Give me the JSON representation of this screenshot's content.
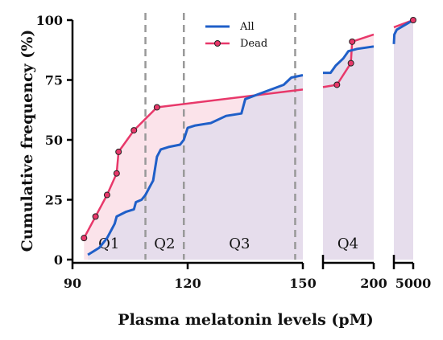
{
  "chart_data": {
    "type": "line",
    "xlabel": "Plasma melatonin levels (pM)",
    "ylabel": "Cumulative frequency (%)",
    "ylim": [
      0,
      100
    ],
    "y_ticks": [
      "0",
      "25",
      "50",
      "75",
      "100"
    ],
    "x_ticks": [
      "90",
      "120",
      "150",
      "200",
      "5000"
    ],
    "x_axis_segments": [
      {
        "range": [
          90,
          150
        ],
        "ticks": [
          90,
          120,
          150
        ]
      },
      {
        "range": [
          160,
          200
        ],
        "ticks": [
          200
        ]
      },
      {
        "range": [
          3000,
          5000
        ],
        "ticks": [
          5000
        ]
      }
    ],
    "quartile_boundaries": [
      109,
      119,
      148
    ],
    "quartile_labels": [
      "Q1",
      "Q2",
      "Q3",
      "Q4"
    ],
    "grid": false,
    "legend_position": "top",
    "colors": {
      "all": "#1f5fc8",
      "dead": "#e8386a",
      "all_fill": "#e4dcec",
      "dead_fill": "#fbe3ea",
      "divider": "#999999"
    },
    "series": [
      {
        "name": "All",
        "points": [
          [
            94,
            2
          ],
          [
            97,
            5
          ],
          [
            99,
            9
          ],
          [
            100,
            12
          ],
          [
            101,
            15
          ],
          [
            101.5,
            18
          ],
          [
            104,
            20
          ],
          [
            106,
            21
          ],
          [
            106.5,
            24
          ],
          [
            108,
            25
          ],
          [
            109,
            27
          ],
          [
            110,
            30
          ],
          [
            111,
            33
          ],
          [
            111.5,
            38
          ],
          [
            112,
            43
          ],
          [
            113,
            46
          ],
          [
            115,
            47
          ],
          [
            118,
            48
          ],
          [
            119,
            50
          ],
          [
            120,
            55
          ],
          [
            122,
            56
          ],
          [
            126,
            57
          ],
          [
            130,
            60
          ],
          [
            134,
            61
          ],
          [
            135,
            67
          ],
          [
            140,
            70
          ],
          [
            145,
            73
          ],
          [
            147,
            76
          ],
          [
            150,
            77
          ],
          [
            160,
            78
          ],
          [
            166,
            78
          ],
          [
            170,
            81
          ],
          [
            176,
            84
          ],
          [
            180,
            87
          ],
          [
            187,
            88
          ],
          [
            200,
            89
          ],
          [
            3000,
            90
          ],
          [
            3050,
            94
          ],
          [
            3300,
            96
          ],
          [
            5000,
            100
          ]
        ]
      },
      {
        "name": "Dead",
        "points": [
          [
            93,
            9
          ],
          [
            96,
            18
          ],
          [
            99,
            27
          ],
          [
            101.5,
            36
          ],
          [
            102,
            45
          ],
          [
            106,
            54
          ],
          [
            112,
            63.6
          ],
          [
            150,
            71
          ],
          [
            160,
            72
          ],
          [
            171,
            73
          ],
          [
            182,
            82
          ],
          [
            183,
            91
          ],
          [
            200,
            94
          ],
          [
            3000,
            97
          ],
          [
            5000,
            100
          ]
        ]
      }
    ]
  }
}
